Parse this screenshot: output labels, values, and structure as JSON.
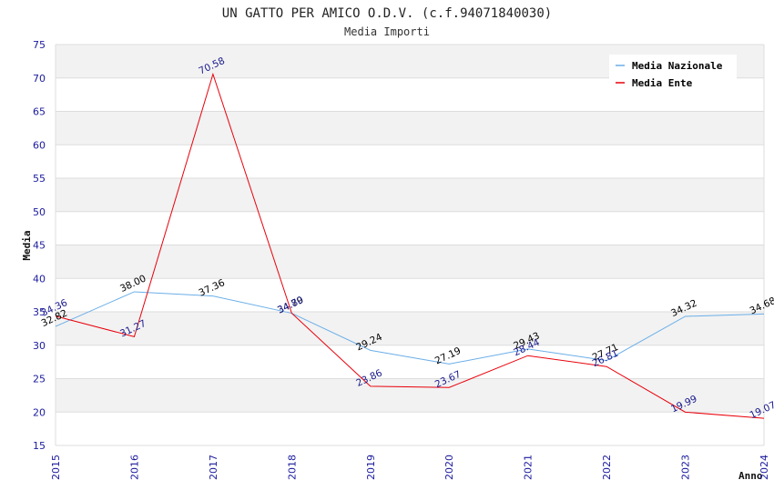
{
  "chart_data": {
    "type": "line",
    "title": "UN GATTO PER AMICO O.D.V. (c.f.94071840030)",
    "subtitle": "Media Importi",
    "xlabel": "Anno",
    "ylabel": "Media",
    "ylim": [
      15,
      75
    ],
    "yticks": [
      15,
      20,
      25,
      30,
      35,
      40,
      45,
      50,
      55,
      60,
      65,
      70,
      75
    ],
    "categories": [
      "2015",
      "2016",
      "2017",
      "2018",
      "2019",
      "2020",
      "2021",
      "2022",
      "2023",
      "2024"
    ],
    "series": [
      {
        "name": "Media Nazionale",
        "color": "#6aaee8",
        "label_color": "#000000",
        "values": [
          32.82,
          38.0,
          37.36,
          34.79,
          29.24,
          27.19,
          29.43,
          27.71,
          34.32,
          34.68
        ],
        "labels": [
          "32.82",
          "38.00",
          "37.36",
          "34.79",
          "29.24",
          "27.19",
          "29.43",
          "27.71",
          "34.32",
          "34.68"
        ]
      },
      {
        "name": "Media Ente",
        "color": "#e8000a",
        "label_color": "#1a1a8c",
        "values": [
          34.36,
          31.27,
          70.58,
          34.8,
          23.86,
          23.67,
          28.44,
          26.81,
          19.99,
          19.07
        ],
        "labels": [
          "34.36",
          "31.27",
          "70.58",
          "34.80",
          "23.86",
          "23.67",
          "28.44",
          "26.81",
          "19.99",
          "19.07"
        ]
      }
    ],
    "legend_position": "top-right",
    "grid": true
  }
}
